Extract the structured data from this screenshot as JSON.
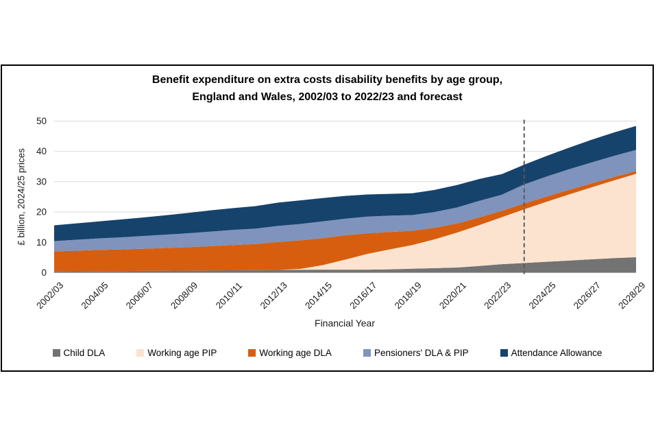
{
  "figure": {
    "title_line1": "Benefit expenditure on extra costs disability benefits by age group,",
    "title_line2": "England and Wales, 2002/03 to 2022/23 and forecast"
  },
  "chart_data": {
    "type": "area",
    "stacked": true,
    "title": "Benefit expenditure on extra costs disability benefits by age group, England and Wales, 2002/03 to 2022/23 and forecast",
    "xlabel": "Financial Year",
    "ylabel": "£ billion, 2024/25 prices",
    "ylim": [
      0,
      50
    ],
    "yticks": [
      0,
      10,
      20,
      30,
      40,
      50
    ],
    "grid": "horizontal-light",
    "legend_position": "bottom",
    "x_tick_interval": 2,
    "forecast_divider_at": "2023/24",
    "x": [
      "2002/03",
      "2003/04",
      "2004/05",
      "2005/06",
      "2006/07",
      "2007/08",
      "2008/09",
      "2009/10",
      "2010/11",
      "2011/12",
      "2012/13",
      "2013/14",
      "2014/15",
      "2015/16",
      "2016/17",
      "2017/18",
      "2018/19",
      "2019/20",
      "2020/21",
      "2021/22",
      "2022/23",
      "2023/24",
      "2024/25",
      "2025/26",
      "2026/27",
      "2027/28",
      "2028/29"
    ],
    "series": [
      {
        "name": "Child DLA",
        "color": "#737373",
        "values": [
          0.4,
          0.45,
          0.5,
          0.55,
          0.6,
          0.65,
          0.7,
          0.75,
          0.8,
          0.85,
          0.9,
          0.95,
          1.0,
          1.0,
          1.0,
          1.1,
          1.3,
          1.5,
          1.7,
          2.2,
          2.8,
          3.2,
          3.6,
          4.0,
          4.4,
          4.8,
          5.1
        ]
      },
      {
        "name": "Working age PIP",
        "color": "#FBE3CF",
        "values": [
          0,
          0,
          0,
          0,
          0,
          0,
          0,
          0,
          0,
          0,
          0,
          0.3,
          1.5,
          3.3,
          5.2,
          6.6,
          7.8,
          9.5,
          11.5,
          13.5,
          15.5,
          17.7,
          19.8,
          21.8,
          23.7,
          25.6,
          27.5
        ]
      },
      {
        "name": "Working age DLA",
        "color": "#D75E0F",
        "values": [
          6.6,
          6.8,
          7.0,
          7.1,
          7.3,
          7.5,
          7.7,
          8.0,
          8.3,
          8.6,
          9.2,
          9.4,
          8.9,
          8.0,
          6.8,
          5.7,
          4.7,
          3.8,
          3.0,
          2.5,
          2.1,
          1.9,
          1.7,
          1.5,
          1.3,
          1.1,
          0.9
        ]
      },
      {
        "name": "Pensioners' DLA & PIP",
        "color": "#7F93BC",
        "values": [
          3.4,
          3.6,
          3.8,
          4.0,
          4.2,
          4.4,
          4.6,
          4.8,
          5.0,
          5.1,
          5.3,
          5.4,
          5.5,
          5.5,
          5.5,
          5.4,
          5.2,
          5.2,
          5.3,
          5.5,
          5.3,
          6.3,
          6.6,
          6.8,
          6.9,
          7.0,
          7.0
        ]
      },
      {
        "name": "Attendance Allowance",
        "color": "#16436C",
        "values": [
          5.2,
          5.4,
          5.6,
          5.9,
          6.1,
          6.4,
          6.7,
          7.0,
          7.2,
          7.4,
          7.7,
          7.8,
          7.7,
          7.5,
          7.3,
          7.2,
          7.2,
          7.3,
          7.4,
          7.2,
          6.8,
          6.5,
          6.8,
          7.1,
          7.5,
          7.7,
          7.9
        ]
      }
    ],
    "colors": {
      "gridline": "#D9D9D9",
      "forecast_divider": "#595959",
      "axis_text": "#1a1a1a"
    }
  }
}
